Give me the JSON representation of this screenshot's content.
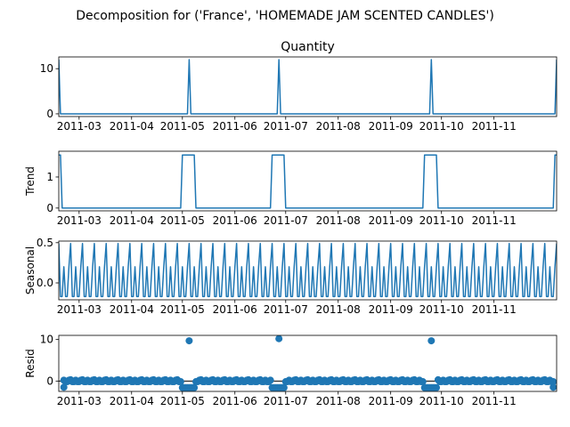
{
  "figure": {
    "title": "Decomposition for ('France', 'HOMEMADE JAM SCENTED CANDLES')"
  },
  "chart_data": [
    {
      "type": "line",
      "panel": "observed",
      "title": "Quantity",
      "ylabel": "",
      "xlim": [
        "2011-02-17",
        "2011-12-08"
      ],
      "ylim": [
        -0.6,
        12.6
      ],
      "yticks": [
        0,
        10
      ],
      "xticks": [
        "2011-03",
        "2011-04",
        "2011-05",
        "2011-06",
        "2011-07",
        "2011-08",
        "2011-09",
        "2011-10",
        "2011-11"
      ],
      "line_color": "#1f77b4",
      "baseline": 0,
      "spikes": [
        {
          "date": "2011-05-05",
          "value": 12
        },
        {
          "date": "2011-06-27",
          "value": 12
        },
        {
          "date": "2011-09-25",
          "value": 12
        }
      ],
      "start_value": 12,
      "end_value": 12
    },
    {
      "type": "line",
      "panel": "trend",
      "title": "",
      "ylabel": "Trend",
      "xlim": [
        "2011-02-17",
        "2011-12-08"
      ],
      "ylim": [
        -0.09,
        1.83
      ],
      "yticks": [
        0,
        1
      ],
      "xticks": [
        "2011-03",
        "2011-04",
        "2011-05",
        "2011-06",
        "2011-07",
        "2011-08",
        "2011-09",
        "2011-10",
        "2011-11"
      ],
      "line_color": "#1f77b4",
      "baseline": 0,
      "plateaus": [
        {
          "start": "2011-05-01",
          "end": "2011-05-08",
          "value": 1.71
        },
        {
          "start": "2011-06-23",
          "end": "2011-06-30",
          "value": 1.71
        },
        {
          "start": "2011-09-21",
          "end": "2011-09-28",
          "value": 1.71
        }
      ],
      "start_value": 1.71,
      "end_value": 1.71
    },
    {
      "type": "line",
      "panel": "seasonal",
      "title": "",
      "ylabel": "Seasonal",
      "xlim": [
        "2011-02-17",
        "2011-12-08"
      ],
      "ylim": [
        -0.21,
        0.52
      ],
      "yticks": [
        0.0,
        0.5
      ],
      "ytick_labels": [
        "0.0",
        "0.5"
      ],
      "xticks": [
        "2011-03",
        "2011-04",
        "2011-05",
        "2011-06",
        "2011-07",
        "2011-08",
        "2011-09",
        "2011-10",
        "2011-11"
      ],
      "line_color": "#1f77b4",
      "period_days": 7,
      "weekly_pattern": [
        0.49,
        -0.17,
        -0.17,
        0.2,
        -0.17,
        -0.17,
        0.2
      ]
    },
    {
      "type": "scatter",
      "panel": "resid",
      "title": "",
      "ylabel": "Resid",
      "xlim": [
        "2011-02-17",
        "2011-12-08"
      ],
      "ylim": [
        -2.5,
        11.0
      ],
      "yticks": [
        0,
        10
      ],
      "xticks": [
        "2011-03",
        "2011-04",
        "2011-05",
        "2011-06",
        "2011-07",
        "2011-08",
        "2011-09",
        "2011-10",
        "2011-11"
      ],
      "marker_color": "#1f77b4",
      "zero_line": true,
      "outliers": [
        {
          "date": "2011-05-05",
          "value": 9.7
        },
        {
          "date": "2011-06-27",
          "value": 10.2
        },
        {
          "date": "2011-09-25",
          "value": 9.7
        },
        {
          "date": "2011-02-20",
          "value": -1.5
        },
        {
          "date": "2011-12-06",
          "value": -1.5
        }
      ],
      "dip_windows": [
        {
          "start": "2011-05-01",
          "end": "2011-05-08",
          "value": -1.6
        },
        {
          "start": "2011-06-23",
          "end": "2011-06-30",
          "value": -1.6
        },
        {
          "start": "2011-09-21",
          "end": "2011-09-28",
          "value": -1.6
        }
      ],
      "baseline_pattern": [
        0.3,
        -0.15,
        -0.15,
        0.2,
        -0.15,
        -0.15,
        0.2
      ]
    }
  ]
}
